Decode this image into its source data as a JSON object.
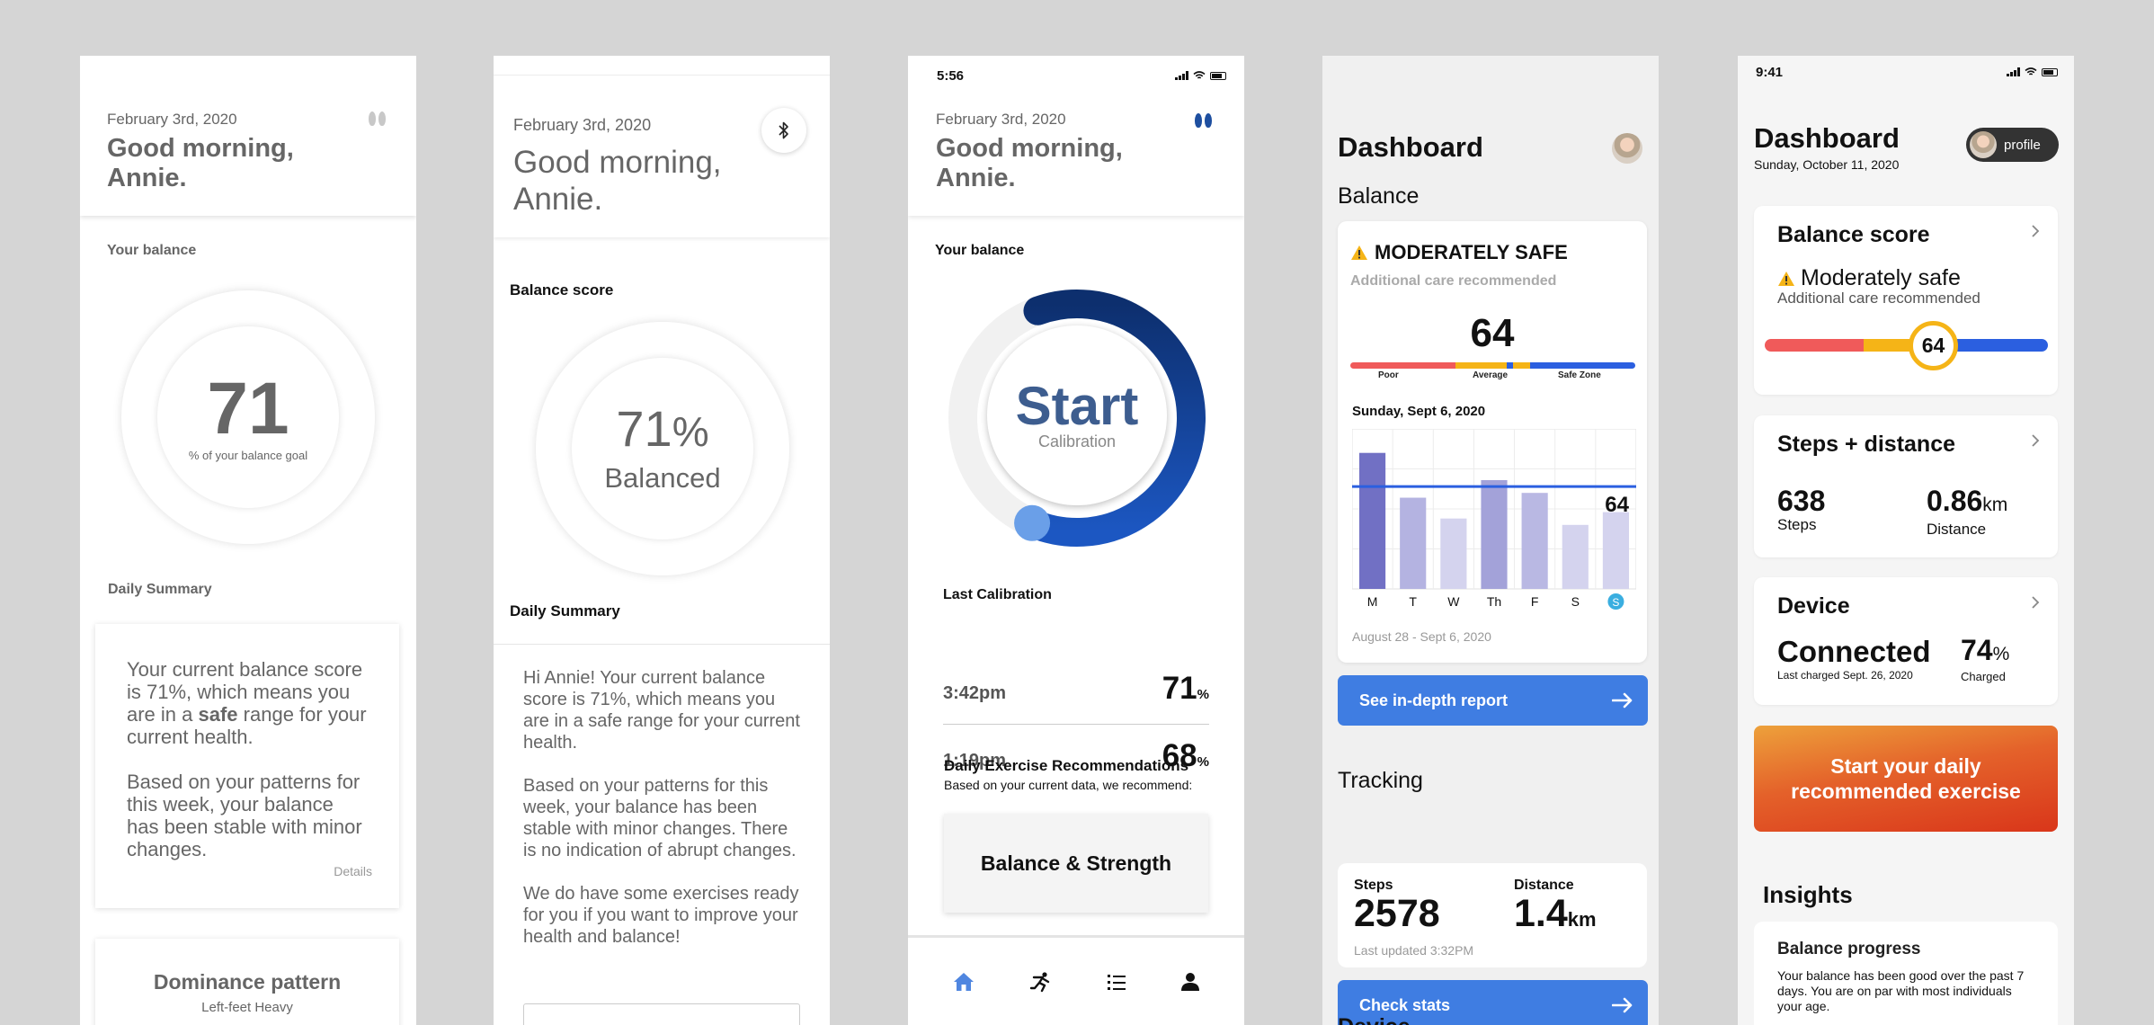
{
  "screen1": {
    "date": "February 3rd, 2020",
    "greeting": "Good morning, Annie.",
    "balance_label": "Your balance",
    "score": "71",
    "score_sub": "% of your balance goal",
    "summary_label": "Daily Summary",
    "summary_p1_a": "Your current balance score is 71%, which means you are in a ",
    "summary_p1_bold": "safe",
    "summary_p1_b": " range for your current health.",
    "summary_p2": "Based on your patterns for this week, your balance has been stable with minor changes.",
    "details_link": "Details",
    "dominance_title": "Dominance pattern",
    "dominance_sub": "Left-feet Heavy"
  },
  "screen2": {
    "date": "February 3rd, 2020",
    "greeting": "Good morning, Annie.",
    "balance_label": "Balance score",
    "percent": "71",
    "percent_sign": "%",
    "balanced": "Balanced",
    "summary_label": "Daily Summary",
    "p1": "Hi Annie! Your current balance score is 71%, which means you are in a safe range for your current health.",
    "p2": "Based on your patterns for this week, your balance has been stable with minor changes. There is no indication of abrupt changes.",
    "p3": "We do have some exercises ready for you if you want to improve your health and balance!"
  },
  "screen3": {
    "time": "5:56",
    "date": "February 3rd, 2020",
    "greeting": "Good morning, Annie.",
    "balance_label": "Your balance",
    "start": "Start",
    "calibration": "Calibration",
    "last_calibration": "Last Calibration",
    "calibrations": [
      {
        "time": "3:42pm",
        "value": "71",
        "unit": "%"
      },
      {
        "time": "1:19pm",
        "value": "68",
        "unit": "%"
      }
    ],
    "exercise_title": "Daily Exercise Recommendations",
    "exercise_sub": "Based on your current data, we recommend:",
    "exercise_card": "Balance & Strength",
    "gauge_fraction": 0.62
  },
  "screen4": {
    "title": "Dashboard",
    "balance_section": "Balance",
    "status": "MODERATELY SAFE",
    "status_sub": "Additional care recommended",
    "score": "64",
    "bar_labels": [
      "Poor",
      "Average",
      "Safe Zone"
    ],
    "chart_date": "Sunday, Sept 6, 2020",
    "days": [
      "M",
      "T",
      "W",
      "Th",
      "F",
      "S",
      "S"
    ],
    "weekly_values": [
      85,
      57,
      44,
      68,
      60,
      40,
      48
    ],
    "threshold": 64,
    "threshold_label": "64",
    "range": "August 28 - Sept 6, 2020",
    "report_button": "See in-depth report",
    "tracking_section": "Tracking",
    "steps_label": "Steps",
    "steps_value": "2578",
    "distance_label": "Distance",
    "distance_value": "1.4",
    "distance_unit": "km",
    "updated": "Last updated 3:32PM",
    "stats_button": "Check stats",
    "next_section": "Device"
  },
  "screen5": {
    "time": "9:41",
    "title": "Dashboard",
    "date": "Sunday, October 11, 2020",
    "profile": "profile",
    "balance_title": "Balance score",
    "balance_status": "Moderately safe",
    "balance_sub": "Additional care recommended",
    "balance_score": "64",
    "steps_title": "Steps + distance",
    "steps_value": "638",
    "steps_label": "Steps",
    "distance_value": "0.86",
    "distance_unit": "km",
    "distance_label": "Distance",
    "device_title": "Device",
    "device_status": "Connected",
    "device_charged_on": "Last charged Sept. 26, 2020",
    "battery_value": "74",
    "battery_unit": "%",
    "battery_label": "Charged",
    "banner": "Start your daily recommended exercise",
    "insights": "Insights",
    "insight_title": "Balance progress",
    "insight_body": "Your balance has been good over the past 7 days.  You are on par with most individuals your age."
  },
  "colors": {
    "accent_blue": "#3f7de2",
    "poor_red": "#f05a5a",
    "average_yellow": "#f5b417",
    "safe_blue": "#2b5fe0",
    "navy": "#0d3a8a"
  }
}
